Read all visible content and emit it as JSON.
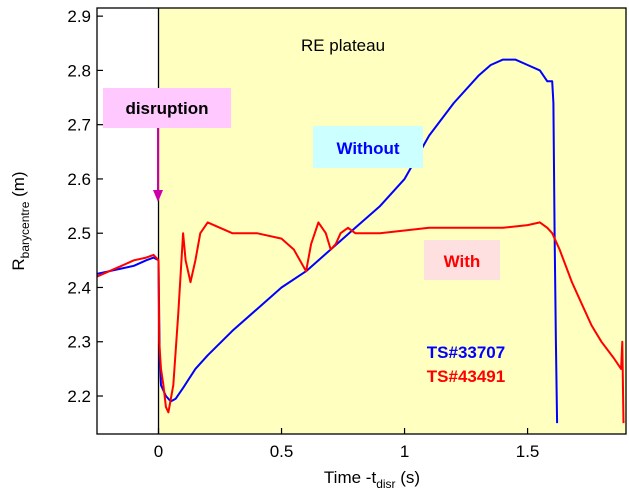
{
  "chart_data": {
    "type": "line",
    "title": "",
    "xlabel": {
      "main": "Time -t",
      "sub": "disr",
      "unit": " (s)"
    },
    "ylabel": {
      "main": "R",
      "sub": "barycentre",
      "unit": " (m)"
    },
    "xlim": [
      -0.25,
      1.9
    ],
    "ylim": [
      2.13,
      2.915
    ],
    "x_ticks": [
      0,
      0.5,
      1,
      1.5
    ],
    "x_tick_labels": [
      "0",
      "0.5",
      "1",
      "1.5"
    ],
    "y_ticks": [
      2.2,
      2.3,
      2.4,
      2.5,
      2.6,
      2.7,
      2.8,
      2.9
    ],
    "y_tick_labels": [
      "2.2",
      "2.3",
      "2.4",
      "2.5",
      "2.6",
      "2.7",
      "2.8",
      "2.9"
    ],
    "grid": false,
    "shaded_region": {
      "label": "RE plateau",
      "x_start": 0,
      "x_end": 1.9,
      "color": "#ffffc0"
    },
    "colors": {
      "without": "#0000ff",
      "with": "#ff0000",
      "arrow": "#cc00aa",
      "disruption_box": "#ffc8ff",
      "without_box": "#ccffff",
      "with_box": "#ffe0e0"
    },
    "series": [
      {
        "name": "Without",
        "color": "#0000ff",
        "x": [
          -0.25,
          -0.2,
          -0.15,
          -0.1,
          -0.05,
          -0.02,
          0.0,
          0.005,
          0.01,
          0.03,
          0.05,
          0.07,
          0.1,
          0.15,
          0.2,
          0.3,
          0.4,
          0.5,
          0.6,
          0.7,
          0.8,
          0.9,
          1.0,
          1.05,
          1.1,
          1.2,
          1.3,
          1.35,
          1.4,
          1.45,
          1.5,
          1.55,
          1.58,
          1.6,
          1.605,
          1.61,
          1.615,
          1.62
        ],
        "y": [
          2.425,
          2.43,
          2.435,
          2.44,
          2.45,
          2.455,
          2.45,
          2.27,
          2.22,
          2.2,
          2.19,
          2.195,
          2.215,
          2.25,
          2.275,
          2.32,
          2.36,
          2.4,
          2.43,
          2.47,
          2.51,
          2.55,
          2.6,
          2.64,
          2.68,
          2.74,
          2.79,
          2.81,
          2.82,
          2.82,
          2.81,
          2.8,
          2.78,
          2.78,
          2.74,
          2.5,
          2.3,
          2.15
        ]
      },
      {
        "name": "With",
        "color": "#ff0000",
        "x": [
          -0.25,
          -0.2,
          -0.15,
          -0.1,
          -0.05,
          -0.02,
          0.0,
          0.003,
          0.01,
          0.02,
          0.03,
          0.04,
          0.06,
          0.08,
          0.1,
          0.11,
          0.13,
          0.15,
          0.17,
          0.2,
          0.25,
          0.3,
          0.4,
          0.5,
          0.55,
          0.6,
          0.62,
          0.65,
          0.68,
          0.7,
          0.72,
          0.74,
          0.77,
          0.8,
          0.85,
          0.9,
          1.0,
          1.1,
          1.2,
          1.3,
          1.4,
          1.5,
          1.55,
          1.58,
          1.6,
          1.63,
          1.68,
          1.72,
          1.76,
          1.8,
          1.85,
          1.88,
          1.885,
          1.89
        ],
        "y": [
          2.42,
          2.43,
          2.44,
          2.45,
          2.455,
          2.46,
          2.45,
          2.3,
          2.25,
          2.22,
          2.18,
          2.17,
          2.22,
          2.35,
          2.5,
          2.45,
          2.41,
          2.45,
          2.5,
          2.52,
          2.51,
          2.5,
          2.5,
          2.49,
          2.47,
          2.43,
          2.48,
          2.52,
          2.5,
          2.47,
          2.48,
          2.5,
          2.51,
          2.5,
          2.5,
          2.5,
          2.505,
          2.51,
          2.51,
          2.51,
          2.51,
          2.515,
          2.52,
          2.51,
          2.5,
          2.47,
          2.41,
          2.37,
          2.33,
          2.3,
          2.27,
          2.25,
          2.3,
          2.15
        ]
      }
    ],
    "annotations": [
      {
        "id": "plateau",
        "text": "RE plateau"
      },
      {
        "id": "disruption",
        "text": "disruption"
      },
      {
        "id": "without",
        "text": "Without"
      },
      {
        "id": "with",
        "text": "With"
      },
      {
        "id": "ts-blue",
        "text": "TS#33707"
      },
      {
        "id": "ts-red",
        "text": "TS#43491"
      }
    ]
  }
}
